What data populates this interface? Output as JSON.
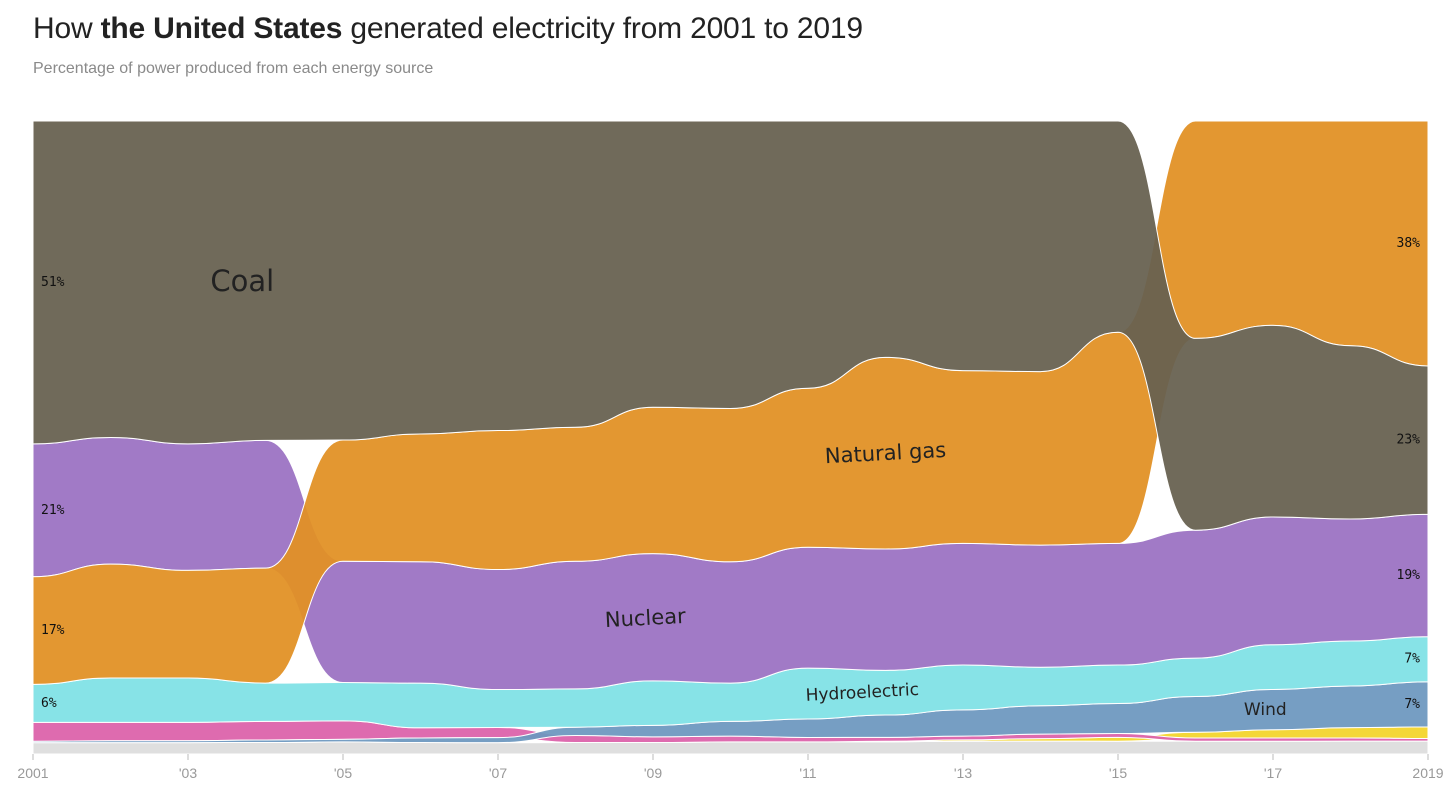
{
  "title": {
    "prefix": "How ",
    "place": "the United States",
    "suffix": " generated electricity from 2001 to 2019"
  },
  "subtitle": "Percentage of power produced from each energy source",
  "chart_data": {
    "type": "area",
    "layout": "bump-ranked stacked share (100%)",
    "years": [
      2001,
      2002,
      2003,
      2004,
      2005,
      2006,
      2007,
      2008,
      2009,
      2010,
      2011,
      2012,
      2013,
      2014,
      2015,
      2016,
      2017,
      2018,
      2019
    ],
    "x_ticks": [
      "2001",
      "'03",
      "'05",
      "'07",
      "'09",
      "'11",
      "'13",
      "'15",
      "'17",
      "2019"
    ],
    "series": [
      {
        "name": "Coal",
        "color": "#676150",
        "values": [
          51,
          50,
          51,
          50,
          50,
          49,
          49,
          48,
          45,
          45,
          42,
          37,
          39,
          39,
          33,
          30,
          30,
          27,
          23
        ]
      },
      {
        "name": "Natural gas",
        "color": "#e19124",
        "values": [
          17,
          18,
          17,
          18,
          19,
          20,
          22,
          21,
          23,
          24,
          25,
          30,
          27,
          27,
          33,
          34,
          32,
          35,
          38
        ]
      },
      {
        "name": "Nuclear",
        "color": "#9b72c2",
        "values": [
          21,
          20,
          20,
          20,
          19,
          19,
          19,
          20,
          20,
          19,
          19,
          19,
          19,
          19,
          19,
          20,
          20,
          19,
          19
        ]
      },
      {
        "name": "Hydroelectric",
        "color": "#7fe1e6",
        "values": [
          6,
          7,
          7,
          6,
          6,
          7,
          6,
          6,
          7,
          6,
          8,
          7,
          7,
          6,
          6,
          6,
          7,
          7,
          7
        ]
      },
      {
        "name": "Wind",
        "color": "#6d98bf",
        "values": [
          0.2,
          0.3,
          0.3,
          0.4,
          0.4,
          0.7,
          0.8,
          1.3,
          1.8,
          2.3,
          2.9,
          3.5,
          4.1,
          4.4,
          4.7,
          5.6,
          6.3,
          6.5,
          7
        ]
      },
      {
        "name": "",
        "color": "#dc62aa",
        "values": [
          3,
          2.9,
          2.9,
          2.9,
          2.9,
          1.6,
          1.6,
          1.1,
          0.9,
          0.9,
          0.7,
          0.6,
          0.6,
          0.7,
          0.6,
          0.5,
          0.5,
          0.5,
          0.4
        ]
      },
      {
        "name": "",
        "color": "#f3d42c",
        "values": [
          0,
          0,
          0,
          0,
          0,
          0,
          0,
          0,
          0,
          0,
          0,
          0.1,
          0.2,
          0.4,
          0.6,
          0.9,
          1.3,
          1.6,
          1.8
        ]
      },
      {
        "name": "",
        "color": "#dddddd",
        "values": [
          1.8,
          1.8,
          1.8,
          1.8,
          1.9,
          1.8,
          1.8,
          1.8,
          1.8,
          1.9,
          1.9,
          1.9,
          2.0,
          2.0,
          2.0,
          2.0,
          2.0,
          2.0,
          2.0
        ]
      }
    ],
    "annotations": {
      "start": [
        {
          "series": "Coal",
          "text": "51%"
        },
        {
          "series": "Nuclear",
          "text": "21%"
        },
        {
          "series": "Natural gas",
          "text": "17%"
        },
        {
          "series": "Hydroelectric",
          "text": "6%"
        }
      ],
      "end": [
        {
          "series": "Natural gas",
          "text": "38%"
        },
        {
          "series": "Coal",
          "text": "23%"
        },
        {
          "series": "Nuclear",
          "text": "19%"
        },
        {
          "series": "Hydroelectric",
          "text": "7%"
        },
        {
          "series": "Wind",
          "text": "7%"
        }
      ],
      "bands": [
        {
          "series": "Coal",
          "text": "Coal",
          "year": 2003.7,
          "size": 29,
          "rotate": 0
        },
        {
          "series": "Natural gas",
          "text": "Natural gas",
          "year": 2012.0,
          "size": 21,
          "rotate": -3
        },
        {
          "series": "Nuclear",
          "text": "Nuclear",
          "year": 2008.9,
          "size": 21,
          "rotate": -3
        },
        {
          "series": "Hydroelectric",
          "text": "Hydroelectric",
          "year": 2011.7,
          "size": 17,
          "rotate": -3
        },
        {
          "series": "Wind",
          "text": "Wind",
          "year": 2016.9,
          "size": 17,
          "rotate": 0
        }
      ]
    }
  }
}
